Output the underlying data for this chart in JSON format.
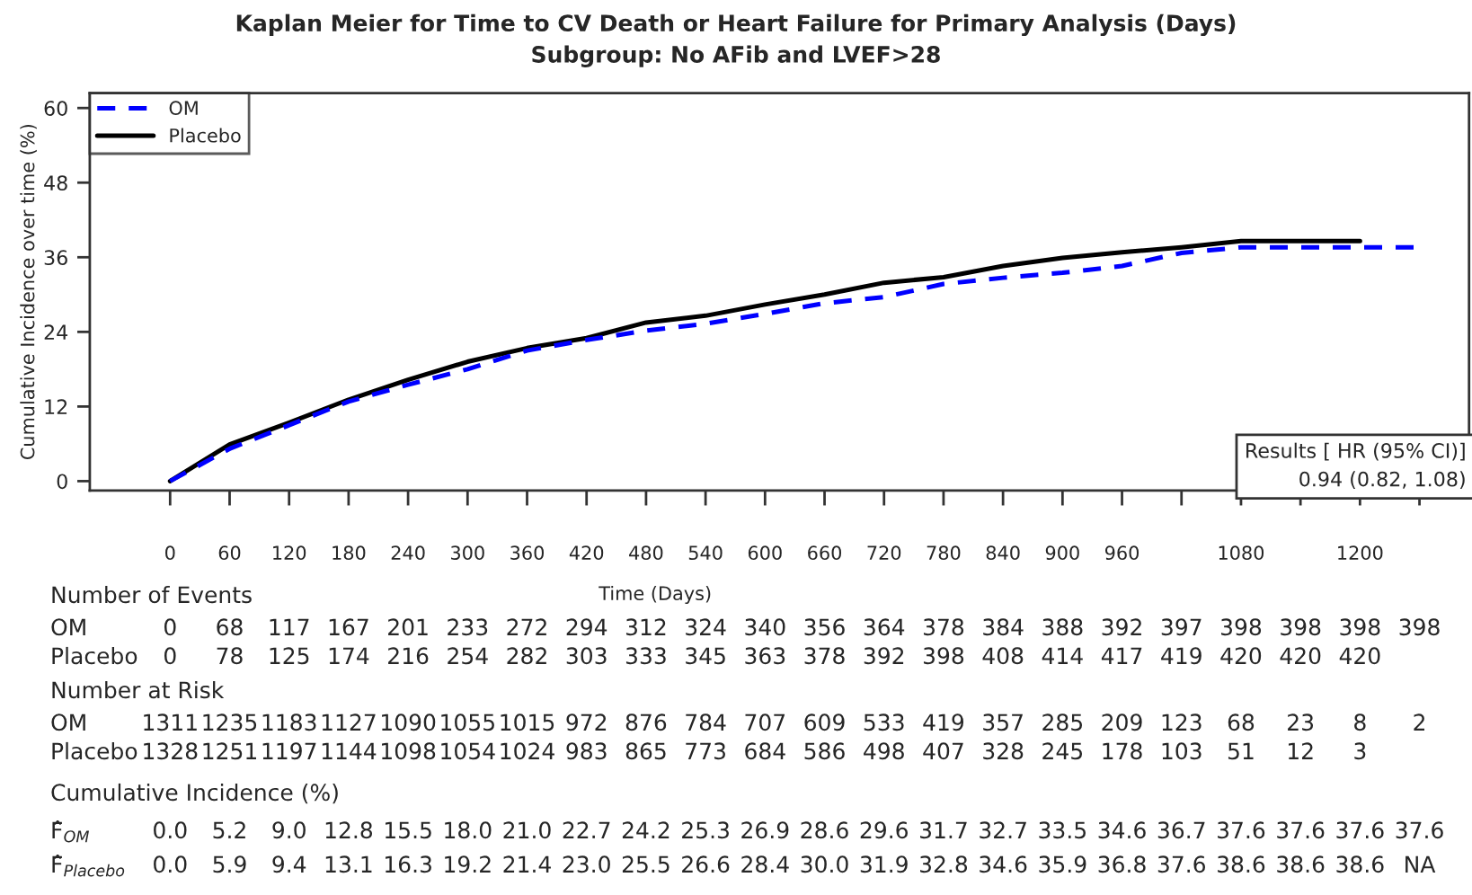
{
  "chart_data": {
    "type": "line",
    "title": "Kaplan Meier for Time to CV Death or Heart Failure for Primary Analysis (Days)",
    "subtitle": "Subgroup: No AFib and LVEF>28",
    "xlabel": "Time (Days)",
    "ylabel": "Cumulative Incidence over time (%)",
    "x": [
      0,
      60,
      120,
      180,
      240,
      300,
      360,
      420,
      480,
      540,
      600,
      660,
      720,
      780,
      840,
      900,
      960,
      1020,
      1080,
      1140,
      1200,
      1260
    ],
    "series": [
      {
        "name": "OM",
        "color": "#0000ff",
        "line_style": "dashed",
        "values": [
          0.0,
          5.2,
          9.0,
          12.8,
          15.5,
          18.0,
          21.0,
          22.7,
          24.2,
          25.3,
          26.9,
          28.6,
          29.6,
          31.7,
          32.7,
          33.5,
          34.6,
          36.7,
          37.6,
          37.6,
          37.6,
          37.6
        ]
      },
      {
        "name": "Placebo",
        "color": "#000000",
        "line_style": "solid",
        "values": [
          0.0,
          5.9,
          9.4,
          13.1,
          16.3,
          19.2,
          21.4,
          23.0,
          25.5,
          26.6,
          28.4,
          30.0,
          31.9,
          32.8,
          34.6,
          35.9,
          36.8,
          37.6,
          38.6,
          38.6,
          38.6,
          null
        ]
      }
    ],
    "xlim": [
      -81,
      1310
    ],
    "ylim": [
      -1.5,
      62.4
    ],
    "xticks": [
      0,
      60,
      120,
      180,
      240,
      300,
      360,
      420,
      480,
      540,
      600,
      660,
      720,
      780,
      840,
      900,
      960,
      {
        "value": 1020,
        "label": null
      },
      1080,
      {
        "value": 1140,
        "label": null
      },
      1200,
      {
        "value": 1260,
        "label": null
      }
    ],
    "yticks": [
      0,
      12,
      24,
      36,
      48,
      60
    ],
    "legend": "top left",
    "grid": false,
    "annotations": [
      "Results [ HR (95% CI)]",
      "0.94 (0.82, 1.08)",
      "Number of Events",
      "OM 0 68 117 167 201 233 272 294 312 324 340 356 364 378 384 388 392 397 398 398 398 398",
      "Placebo 0 78 125 174 216 254 282 303 333 345 363 378 392 398 408 414 417 419 420 420 420",
      "Number at Risk",
      "OM 1311 1235 1183 1127 1090 1055 1015 972 876 784 707 609 533 419 357 285 209 123 68 23 8 2",
      "Placebo 1328 1251 1197 1144 1098 1054 1024 983 865 773 684 586 498 407 328 245 178 103 51 12 3",
      "Cumulative Incidence (%)",
      "F̂$_{OM}$ 0.0 5.2 9.0 12.8 15.5 18.0 21.0 22.7 24.2 25.3 26.9 28.6 29.6 31.7 32.7 33.5 34.6 36.7 37.6 37.6 37.6 37.6",
      "F̂$_{Placebo}$ 0.0 5.9 9.4 13.1 16.3 19.2 21.4 23.0 25.5 26.6 28.4 30.0 31.9 32.8 34.6 35.9 36.8 37.6 38.6 38.6 38.6 NA"
    ]
  }
}
